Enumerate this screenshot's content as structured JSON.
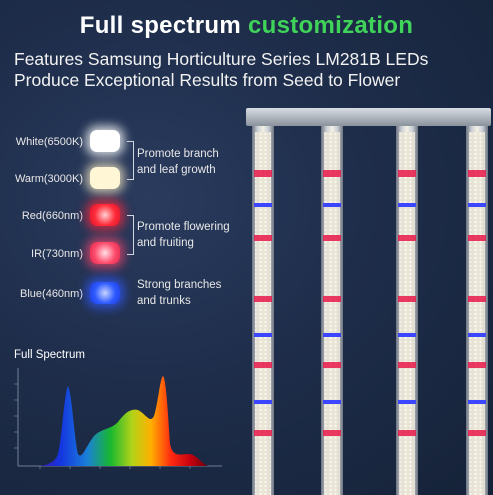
{
  "title": {
    "part1": "Full spectrum ",
    "part2": "customization"
  },
  "subtitle": {
    "line1": "Features Samsung Horticulture  Series LM281B LEDs",
    "line2": "Produce Exceptional Results from Seed to Flower"
  },
  "leds": [
    {
      "label": "White(6500K)",
      "color": "#ffffff"
    },
    {
      "label": "Warm(3000K)",
      "color": "#fff3cf"
    },
    {
      "label": "Red(660nm)",
      "color": "#ff2b3a"
    },
    {
      "label": "IR(730nm)",
      "color": "#ff4d6d"
    },
    {
      "label": "Blue(460nm)",
      "color": "#2f5bff"
    }
  ],
  "descriptions": [
    {
      "line1": "Promote branch",
      "line2": "and leaf growth"
    },
    {
      "line1": "Promote flowering",
      "line2": " and fruiting"
    },
    {
      "line1": "Strong branches",
      "line2": "and trunks"
    }
  ],
  "spectrum": {
    "title": "Full Spectrum"
  }
}
